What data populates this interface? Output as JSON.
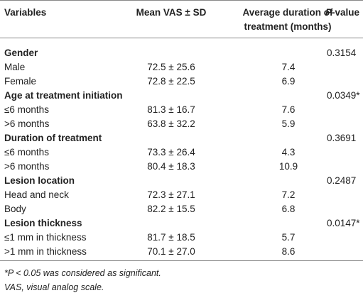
{
  "table": {
    "header": {
      "variables": "Variables",
      "mean": "Mean VAS ± SD",
      "duration": "Average duration of treatment (months)",
      "p_italic": "P",
      "p_rest": "-value"
    },
    "sections": [
      {
        "title": "Gender",
        "p_value": "0.3154",
        "rows": [
          [
            "Male",
            "72.5 ± 25.6",
            "7.4"
          ],
          [
            "Female",
            "72.8 ± 22.5",
            "6.9"
          ]
        ]
      },
      {
        "title": "Age at treatment initiation",
        "p_value": "0.0349*",
        "rows": [
          [
            "≤6 months",
            "81.3 ± 16.7",
            "7.6"
          ],
          [
            ">6 months",
            "63.8 ± 32.2",
            "5.9"
          ]
        ]
      },
      {
        "title": "Duration of treatment",
        "p_value": "0.3691",
        "rows": [
          [
            "≤6 months",
            "73.3 ± 26.4",
            "4.3"
          ],
          [
            ">6 months",
            "80.4 ± 18.3",
            "10.9"
          ]
        ]
      },
      {
        "title": "Lesion location",
        "p_value": "0.2487",
        "rows": [
          [
            "Head and neck",
            "72.3 ± 27.1",
            "7.2"
          ],
          [
            "Body",
            "82.2 ± 15.5",
            "6.8"
          ]
        ]
      },
      {
        "title": "Lesion thickness",
        "p_value": "0.0147*",
        "rows": [
          [
            "≤1 mm in thickness",
            "81.7 ± 18.5",
            "5.7"
          ],
          [
            ">1 mm in thickness",
            "70.1 ± 27.0",
            "8.6"
          ]
        ]
      }
    ],
    "footnotes": [
      "*P < 0.05 was considered as significant.",
      "VAS, visual analog scale."
    ]
  }
}
